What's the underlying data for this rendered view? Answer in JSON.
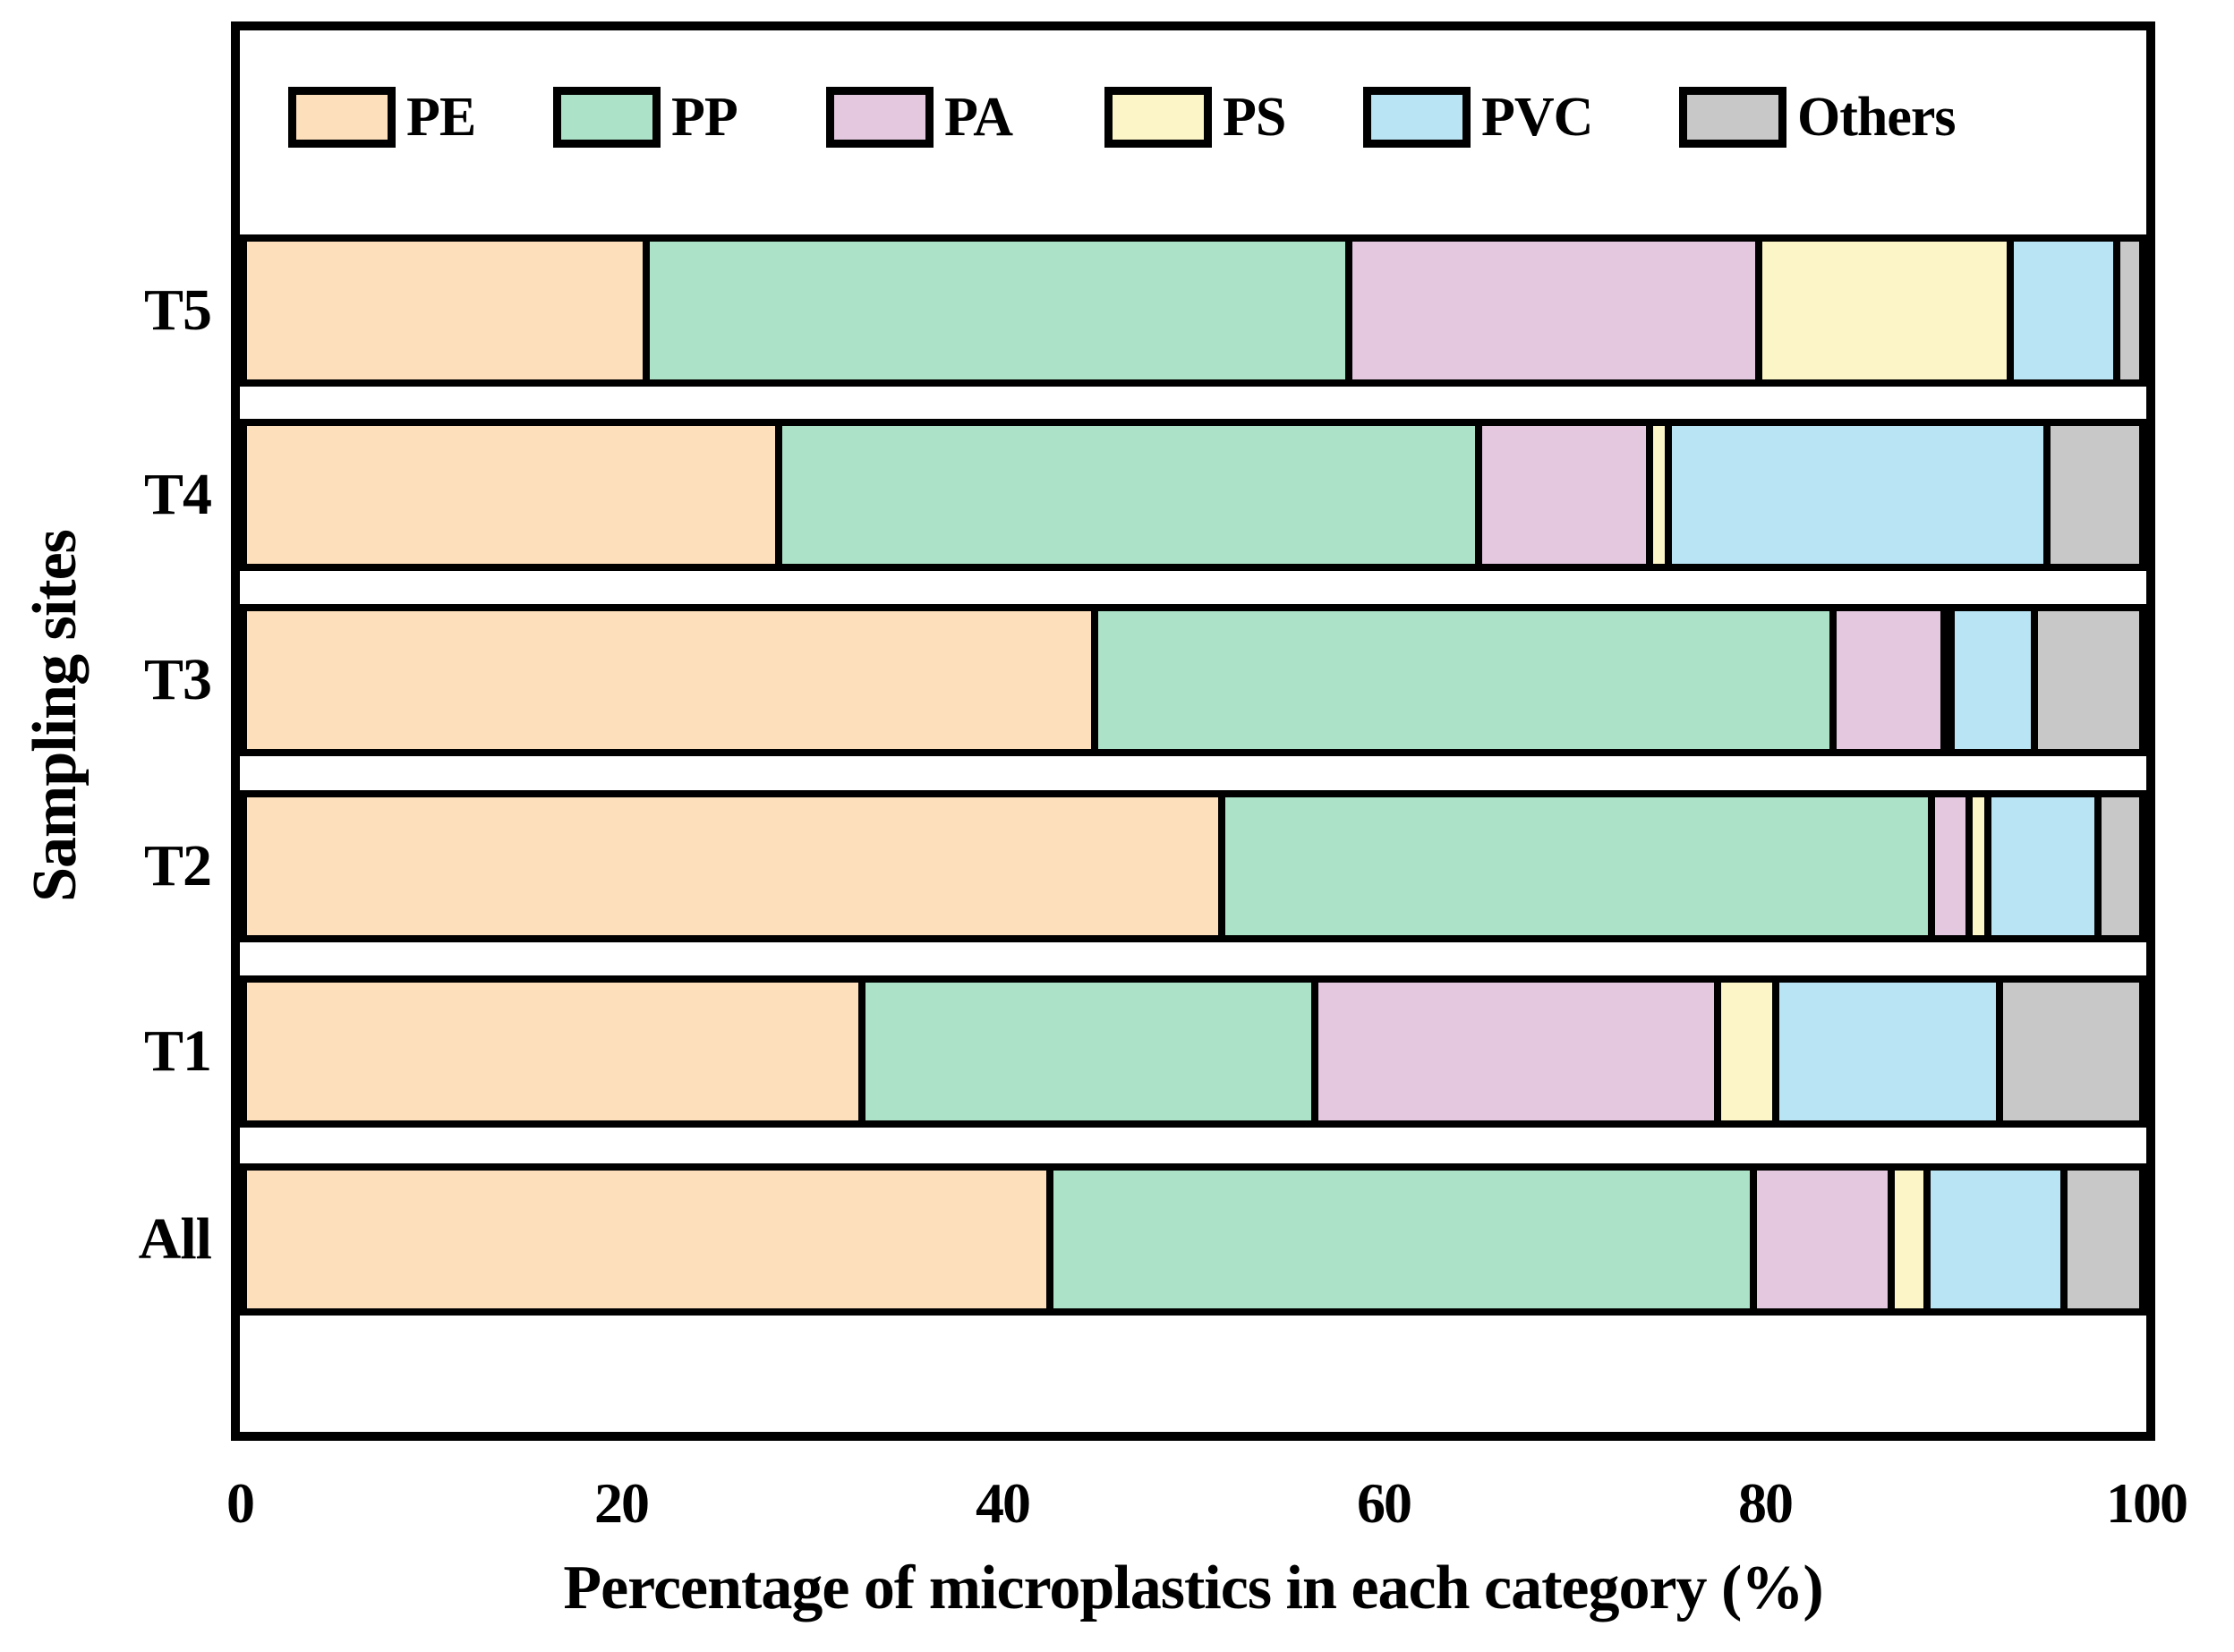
{
  "chart_data": {
    "type": "bar",
    "orientation": "horizontal",
    "stacked": true,
    "title": "",
    "xlabel": "Percentage of microplastics in each category (%)",
    "ylabel": "Sampling sites",
    "xlim": [
      0,
      100
    ],
    "xticks": [
      0,
      20,
      40,
      60,
      80,
      100
    ],
    "grid": false,
    "legend_position": "top-inside",
    "categories": [
      "T5",
      "T4",
      "T3",
      "T2",
      "T1",
      "All"
    ],
    "series": [
      {
        "name": "PE",
        "color": "#fddfbc",
        "values": [
          21.3,
          28.3,
          45.0,
          51.7,
          32.7,
          42.6
        ]
      },
      {
        "name": "PP",
        "color": "#ace3c8",
        "values": [
          37.1,
          37.0,
          39.0,
          37.5,
          23.9,
          37.2
        ]
      },
      {
        "name": "PA",
        "color": "#e3c8e0",
        "values": [
          21.7,
          9.0,
          5.9,
          2.0,
          21.3,
          7.3
        ]
      },
      {
        "name": "PS",
        "color": "#fcf5c7",
        "values": [
          13.3,
          1.0,
          0.3,
          1.0,
          3.1,
          1.9
        ]
      },
      {
        "name": "PVC",
        "color": "#b8e4f4",
        "values": [
          5.6,
          20.0,
          4.4,
          5.8,
          11.8,
          7.2
        ]
      },
      {
        "name": "Others",
        "color": "#c8c8c8",
        "values": [
          1.0,
          4.7,
          5.4,
          2.0,
          7.2,
          3.8
        ]
      }
    ]
  }
}
